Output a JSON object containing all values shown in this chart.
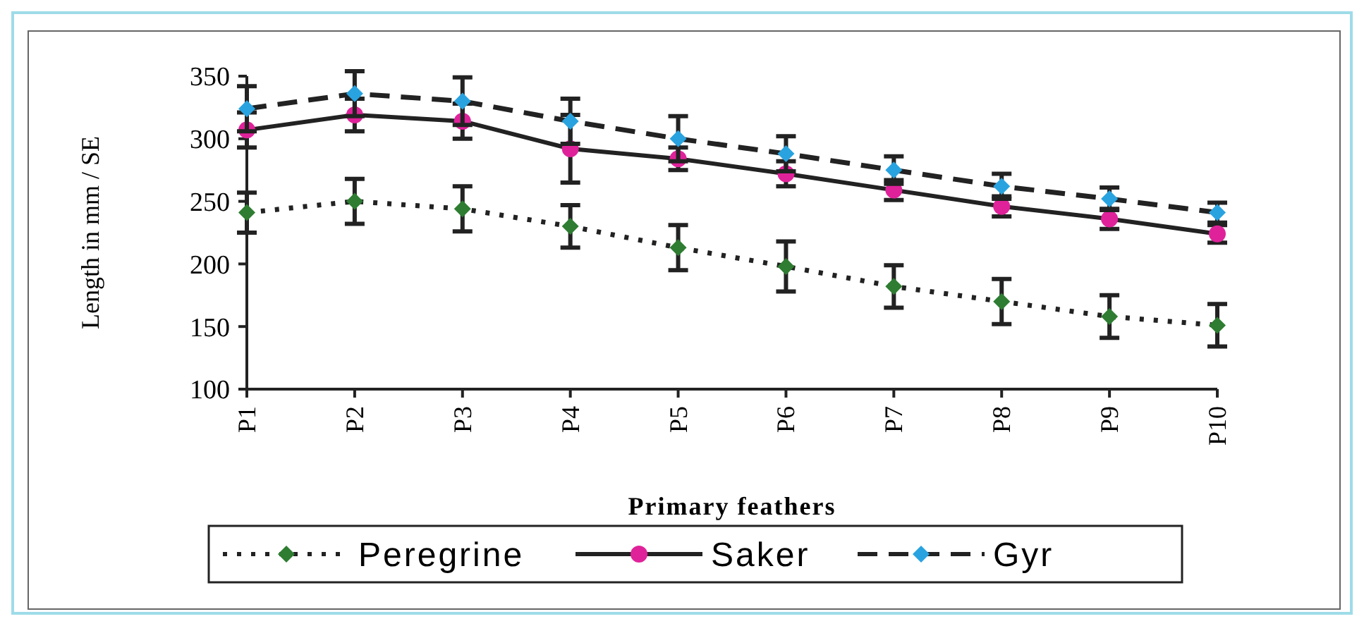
{
  "chart_data": {
    "type": "line",
    "xlabel": "Primary feathers",
    "ylabel": "Length in mm / SE",
    "categories": [
      "P1",
      "P2",
      "P3",
      "P4",
      "P5",
      "P6",
      "P7",
      "P8",
      "P9",
      "P10"
    ],
    "ylim": [
      100,
      350
    ],
    "yticks": [
      100,
      150,
      200,
      250,
      300,
      350
    ],
    "legend": "bottom",
    "series": [
      {
        "name": "Peregrine",
        "color": "#2e7d32",
        "marker": "diamond",
        "line_style": "dotted",
        "values": [
          241,
          250,
          244,
          230,
          213,
          198,
          182,
          170,
          158,
          151
        ],
        "errors": [
          16,
          18,
          18,
          17,
          18,
          20,
          17,
          18,
          17,
          17
        ]
      },
      {
        "name": "Saker",
        "color": "#e0229a",
        "marker": "circle",
        "line_style": "solid",
        "values": [
          307,
          319,
          314,
          292,
          284,
          272,
          259,
          246,
          236,
          224
        ],
        "errors": [
          14,
          13,
          14,
          27,
          9,
          10,
          8,
          8,
          8,
          7
        ]
      },
      {
        "name": "Gyr",
        "color": "#29a3e0",
        "marker": "diamond",
        "line_style": "dashed",
        "values": [
          324,
          336,
          330,
          314,
          300,
          288,
          275,
          262,
          252,
          241
        ],
        "errors": [
          18,
          18,
          19,
          18,
          18,
          14,
          11,
          10,
          9,
          8
        ]
      }
    ]
  }
}
